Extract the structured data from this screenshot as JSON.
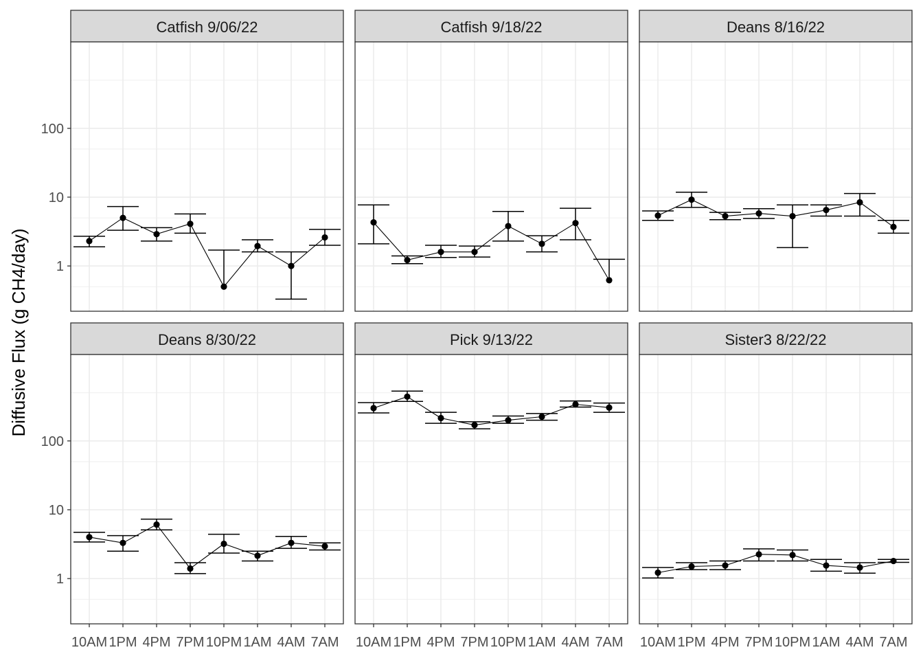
{
  "chart_data": {
    "type": "line",
    "ylabel": "Diffusive Flux (g CH4/day)",
    "xlabel": "",
    "yscale": "log10",
    "ylim": [
      0.22,
      1800
    ],
    "yticks": [
      1,
      10,
      100
    ],
    "ytick_labels": [
      "1",
      "10",
      "100"
    ],
    "categories": [
      "10AM",
      "1PM",
      "4PM",
      "7PM",
      "10PM",
      "1AM",
      "4AM",
      "7AM"
    ],
    "grid": true,
    "legend": "none",
    "colors": {
      "line": "#000000",
      "point": "#000000",
      "strip_fill": "#d9d9d9",
      "grid": "#ebebeb",
      "panel_border": "#333333"
    },
    "panels": [
      {
        "title": "Catfish 9/06/22",
        "values": [
          2.3,
          5.0,
          2.9,
          4.1,
          0.5,
          1.95,
          1.0,
          2.6
        ],
        "err_low": [
          1.9,
          3.3,
          2.3,
          3.0,
          null,
          1.6,
          0.33,
          2.0
        ],
        "err_high": [
          2.7,
          7.3,
          3.6,
          5.7,
          1.7,
          2.4,
          1.6,
          3.4
        ]
      },
      {
        "title": "Catfish 9/18/22",
        "values": [
          4.3,
          1.22,
          1.6,
          1.6,
          3.8,
          2.1,
          4.2,
          0.62
        ],
        "err_low": [
          2.1,
          1.08,
          1.33,
          1.35,
          2.3,
          1.6,
          2.4,
          null
        ],
        "err_high": [
          7.7,
          1.4,
          2.0,
          1.95,
          6.2,
          2.75,
          6.9,
          1.25
        ]
      },
      {
        "title": "Deans 8/16/22",
        "values": [
          5.4,
          9.2,
          5.3,
          5.8,
          5.3,
          6.5,
          8.4,
          3.7
        ],
        "err_low": [
          4.6,
          7.1,
          4.7,
          4.9,
          1.85,
          5.3,
          5.3,
          3.0
        ],
        "err_high": [
          6.3,
          11.8,
          6.0,
          6.8,
          7.7,
          7.7,
          11.3,
          4.6
        ]
      },
      {
        "title": "Deans 8/30/22",
        "values": [
          4.0,
          3.3,
          6.1,
          1.4,
          3.2,
          2.15,
          3.3,
          2.95
        ],
        "err_low": [
          3.4,
          2.5,
          5.1,
          1.18,
          2.35,
          1.8,
          2.75,
          2.6
        ],
        "err_high": [
          4.7,
          4.2,
          7.3,
          1.7,
          4.4,
          2.5,
          4.1,
          3.3
        ]
      },
      {
        "title": "Pick 9/13/22",
        "values": [
          300,
          440,
          215,
          170,
          200,
          225,
          340,
          305
        ],
        "err_low": [
          255,
          375,
          180,
          150,
          180,
          200,
          310,
          260
        ],
        "err_high": [
          360,
          530,
          260,
          190,
          230,
          250,
          380,
          355
        ]
      },
      {
        "title": "Sister3 8/22/22",
        "values": [
          1.22,
          1.5,
          1.55,
          2.25,
          2.2,
          1.55,
          1.45,
          1.8
        ],
        "err_low": [
          1.02,
          1.35,
          1.35,
          1.8,
          1.8,
          1.28,
          1.2,
          1.72
        ],
        "err_high": [
          1.45,
          1.7,
          1.8,
          2.7,
          2.6,
          1.9,
          1.7,
          1.9
        ]
      }
    ]
  }
}
